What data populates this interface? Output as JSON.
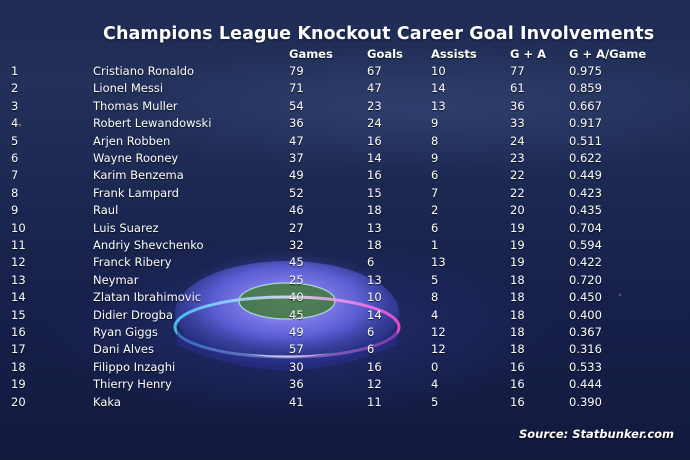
{
  "chart_data": {
    "type": "table",
    "title": "Champions League Knockout Career Goal Involvements",
    "columns": [
      "",
      "",
      "Games",
      "Goals",
      "Assists",
      "G + A",
      "G + A/Game"
    ],
    "rows": [
      [
        "1",
        "Cristiano Ronaldo",
        "79",
        "67",
        "10",
        "77",
        "0.975"
      ],
      [
        "2",
        "Lionel Messi",
        "71",
        "47",
        "14",
        "61",
        "0.859"
      ],
      [
        "3",
        "Thomas Muller",
        "54",
        "23",
        "13",
        "36",
        "0.667"
      ],
      [
        "4",
        "Robert Lewandowski",
        "36",
        "24",
        "9",
        "33",
        "0.917"
      ],
      [
        "5",
        "Arjen Robben",
        "47",
        "16",
        "8",
        "24",
        "0.511"
      ],
      [
        "6",
        "Wayne Rooney",
        "37",
        "14",
        "9",
        "23",
        "0.622"
      ],
      [
        "7",
        "Karim Benzema",
        "49",
        "16",
        "6",
        "22",
        "0.449"
      ],
      [
        "8",
        "Frank Lampard",
        "52",
        "15",
        "7",
        "22",
        "0.423"
      ],
      [
        "9",
        "Raul",
        "46",
        "18",
        "2",
        "20",
        "0.435"
      ],
      [
        "10",
        "Luis Suarez",
        "27",
        "13",
        "6",
        "19",
        "0.704"
      ],
      [
        "11",
        "Andriy Shevchenko",
        "32",
        "18",
        "1",
        "19",
        "0.594"
      ],
      [
        "12",
        "Franck Ribery",
        "45",
        "6",
        "13",
        "19",
        "0.422"
      ],
      [
        "13",
        "Neymar",
        "25",
        "13",
        "5",
        "18",
        "0.720"
      ],
      [
        "14",
        "Zlatan Ibrahimovic",
        "40",
        "10",
        "8",
        "18",
        "0.450"
      ],
      [
        "15",
        "Didier Drogba",
        "45",
        "14",
        "4",
        "18",
        "0.400"
      ],
      [
        "16",
        "Ryan Giggs",
        "49",
        "6",
        "12",
        "18",
        "0.367"
      ],
      [
        "17",
        "Dani Alves",
        "57",
        "6",
        "12",
        "18",
        "0.316"
      ],
      [
        "18",
        "Filippo Inzaghi",
        "30",
        "16",
        "0",
        "16",
        "0.533"
      ],
      [
        "19",
        "Thierry Henry",
        "36",
        "12",
        "4",
        "16",
        "0.444"
      ],
      [
        "20",
        "Kaka",
        "41",
        "11",
        "5",
        "16",
        "0.390"
      ]
    ],
    "source": "Source: Statbunker.com"
  }
}
